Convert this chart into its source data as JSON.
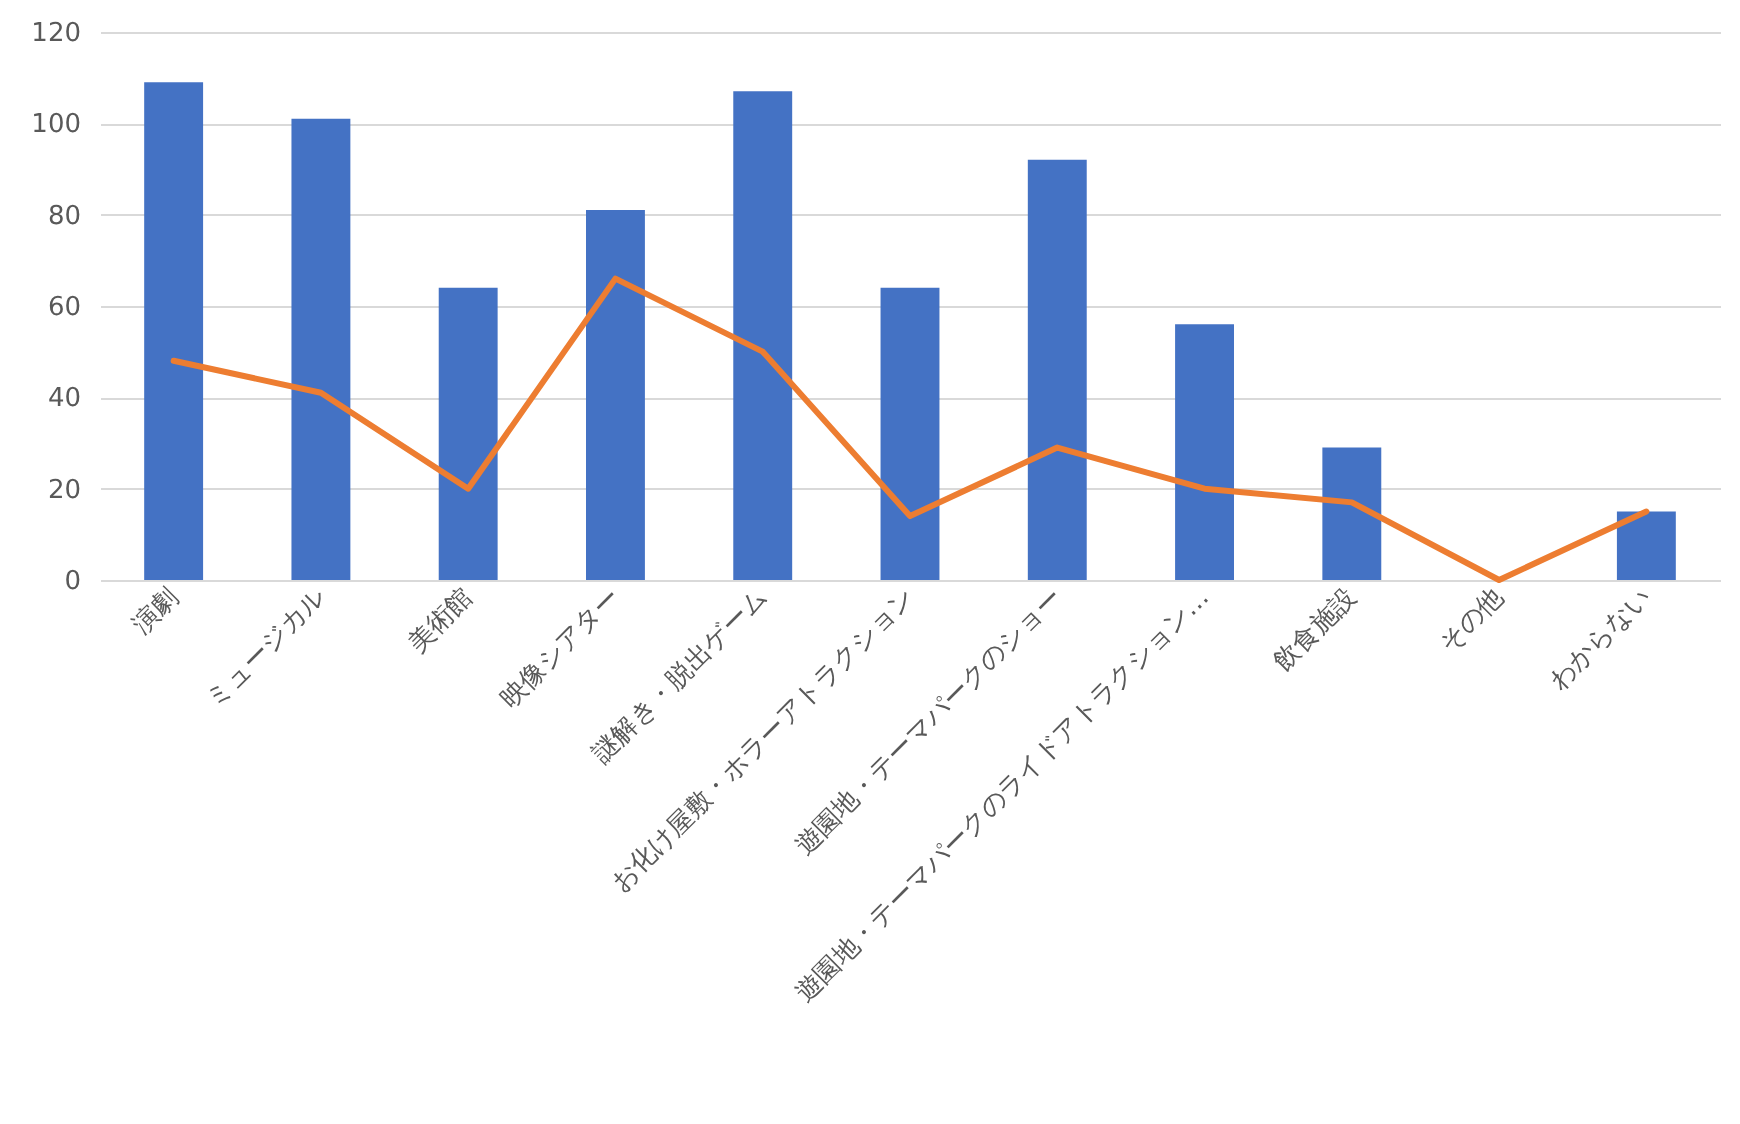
{
  "chart_data": {
    "type": "bar",
    "categories": [
      "演劇",
      "ミュージカル",
      "美術館",
      "映像シアター",
      "謎解き・脱出ゲーム",
      "お化け屋敷・ホラーアトラクション",
      "遊園地・テーマパークのショー",
      "遊園地・テーマパークのライドアトラクション…",
      "飲食施設",
      "その他",
      "わからない"
    ],
    "series": [
      {
        "color": "#4472c4",
        "values": [
          109,
          101,
          64,
          81,
          107,
          64,
          92,
          56,
          29,
          0,
          15
        ]
      },
      {
        "type": "line",
        "color": "#ed7d31",
        "values": [
          48,
          41,
          20,
          66,
          50,
          14,
          29,
          20,
          17,
          0,
          15
        ]
      }
    ],
    "ylim": [
      0,
      120
    ],
    "yticks": [
      0,
      20,
      40,
      60,
      80,
      100,
      120
    ],
    "grid": "y"
  }
}
